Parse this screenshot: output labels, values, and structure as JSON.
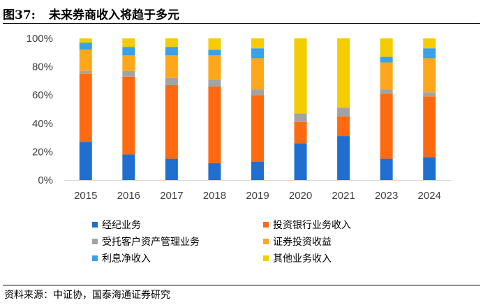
{
  "header": {
    "label": "图37:",
    "title": "未来券商收入将趋于多元"
  },
  "source": "资料来源：中证协，国泰海通证券研究",
  "colors": {
    "brokerage": "#1f6fd1",
    "ib": "#ff6a10",
    "asset_mgmt": "#a3a3a3",
    "securities_inv": "#ffa71a",
    "interest": "#3aa0ea",
    "other": "#f5cc00"
  },
  "chart_data": {
    "type": "bar",
    "stacked": true,
    "categories": [
      "2015",
      "2016",
      "2017",
      "2018",
      "2019",
      "2020",
      "2021",
      "2023",
      "2024"
    ],
    "y_tick_labels": [
      "0%",
      "20%",
      "40%",
      "60%",
      "80%",
      "100%"
    ],
    "ylim": [
      0,
      100
    ],
    "legend_position": "bottom",
    "series": [
      {
        "name": "经纪业务",
        "color_key": "brokerage",
        "values": [
          27,
          18,
          15,
          12,
          13,
          26,
          31,
          15,
          16
        ]
      },
      {
        "name": "投资银行业务收入",
        "color_key": "ib",
        "values": [
          48,
          55,
          52,
          54,
          47,
          15,
          14,
          46,
          43
        ]
      },
      {
        "name": "受托客户资产管理业务",
        "color_key": "asset_mgmt",
        "values": [
          2,
          4,
          5,
          5,
          4,
          6,
          6,
          3,
          3
        ]
      },
      {
        "name": "证券投资收益",
        "color_key": "securities_inv",
        "values": [
          15,
          11,
          16,
          17,
          22,
          0,
          0,
          19,
          24
        ]
      },
      {
        "name": "利息净收入",
        "color_key": "interest",
        "values": [
          5,
          6,
          6,
          4,
          7,
          0,
          0,
          4,
          7
        ]
      },
      {
        "name": "其他业务收入",
        "color_key": "other",
        "values": [
          3,
          6,
          6,
          8,
          7,
          53,
          49,
          13,
          7
        ]
      }
    ]
  }
}
